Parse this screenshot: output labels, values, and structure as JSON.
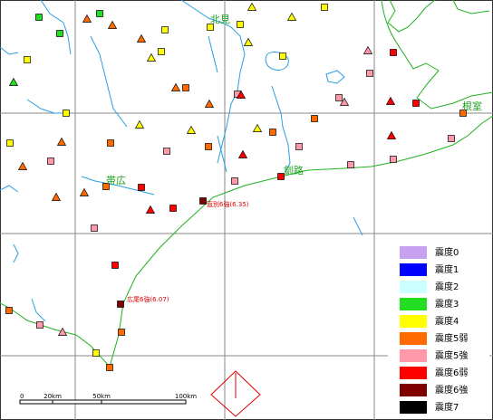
{
  "map": {
    "places": [
      "北見",
      "根室",
      "帯広",
      "釧路"
    ],
    "epicenter_labels": [
      "直別6強(6.35)",
      "広尾6強(6.07)"
    ]
  },
  "legend": {
    "items": [
      {
        "label": "震度0",
        "color": "#c8a0f0"
      },
      {
        "label": "震度1",
        "color": "#0000ff"
      },
      {
        "label": "震度2",
        "color": "#ccffff"
      },
      {
        "label": "震度3",
        "color": "#22dd22"
      },
      {
        "label": "震度4",
        "color": "#ffff00"
      },
      {
        "label": "震度5弱",
        "color": "#ff6a00"
      },
      {
        "label": "震度5強",
        "color": "#ff99aa"
      },
      {
        "label": "震度6弱",
        "color": "#ff0000"
      },
      {
        "label": "震度6強",
        "color": "#800000"
      },
      {
        "label": "震度7",
        "color": "#000000"
      }
    ]
  },
  "scale": {
    "labels": [
      "0",
      "20km",
      "50km",
      "100km"
    ]
  }
}
